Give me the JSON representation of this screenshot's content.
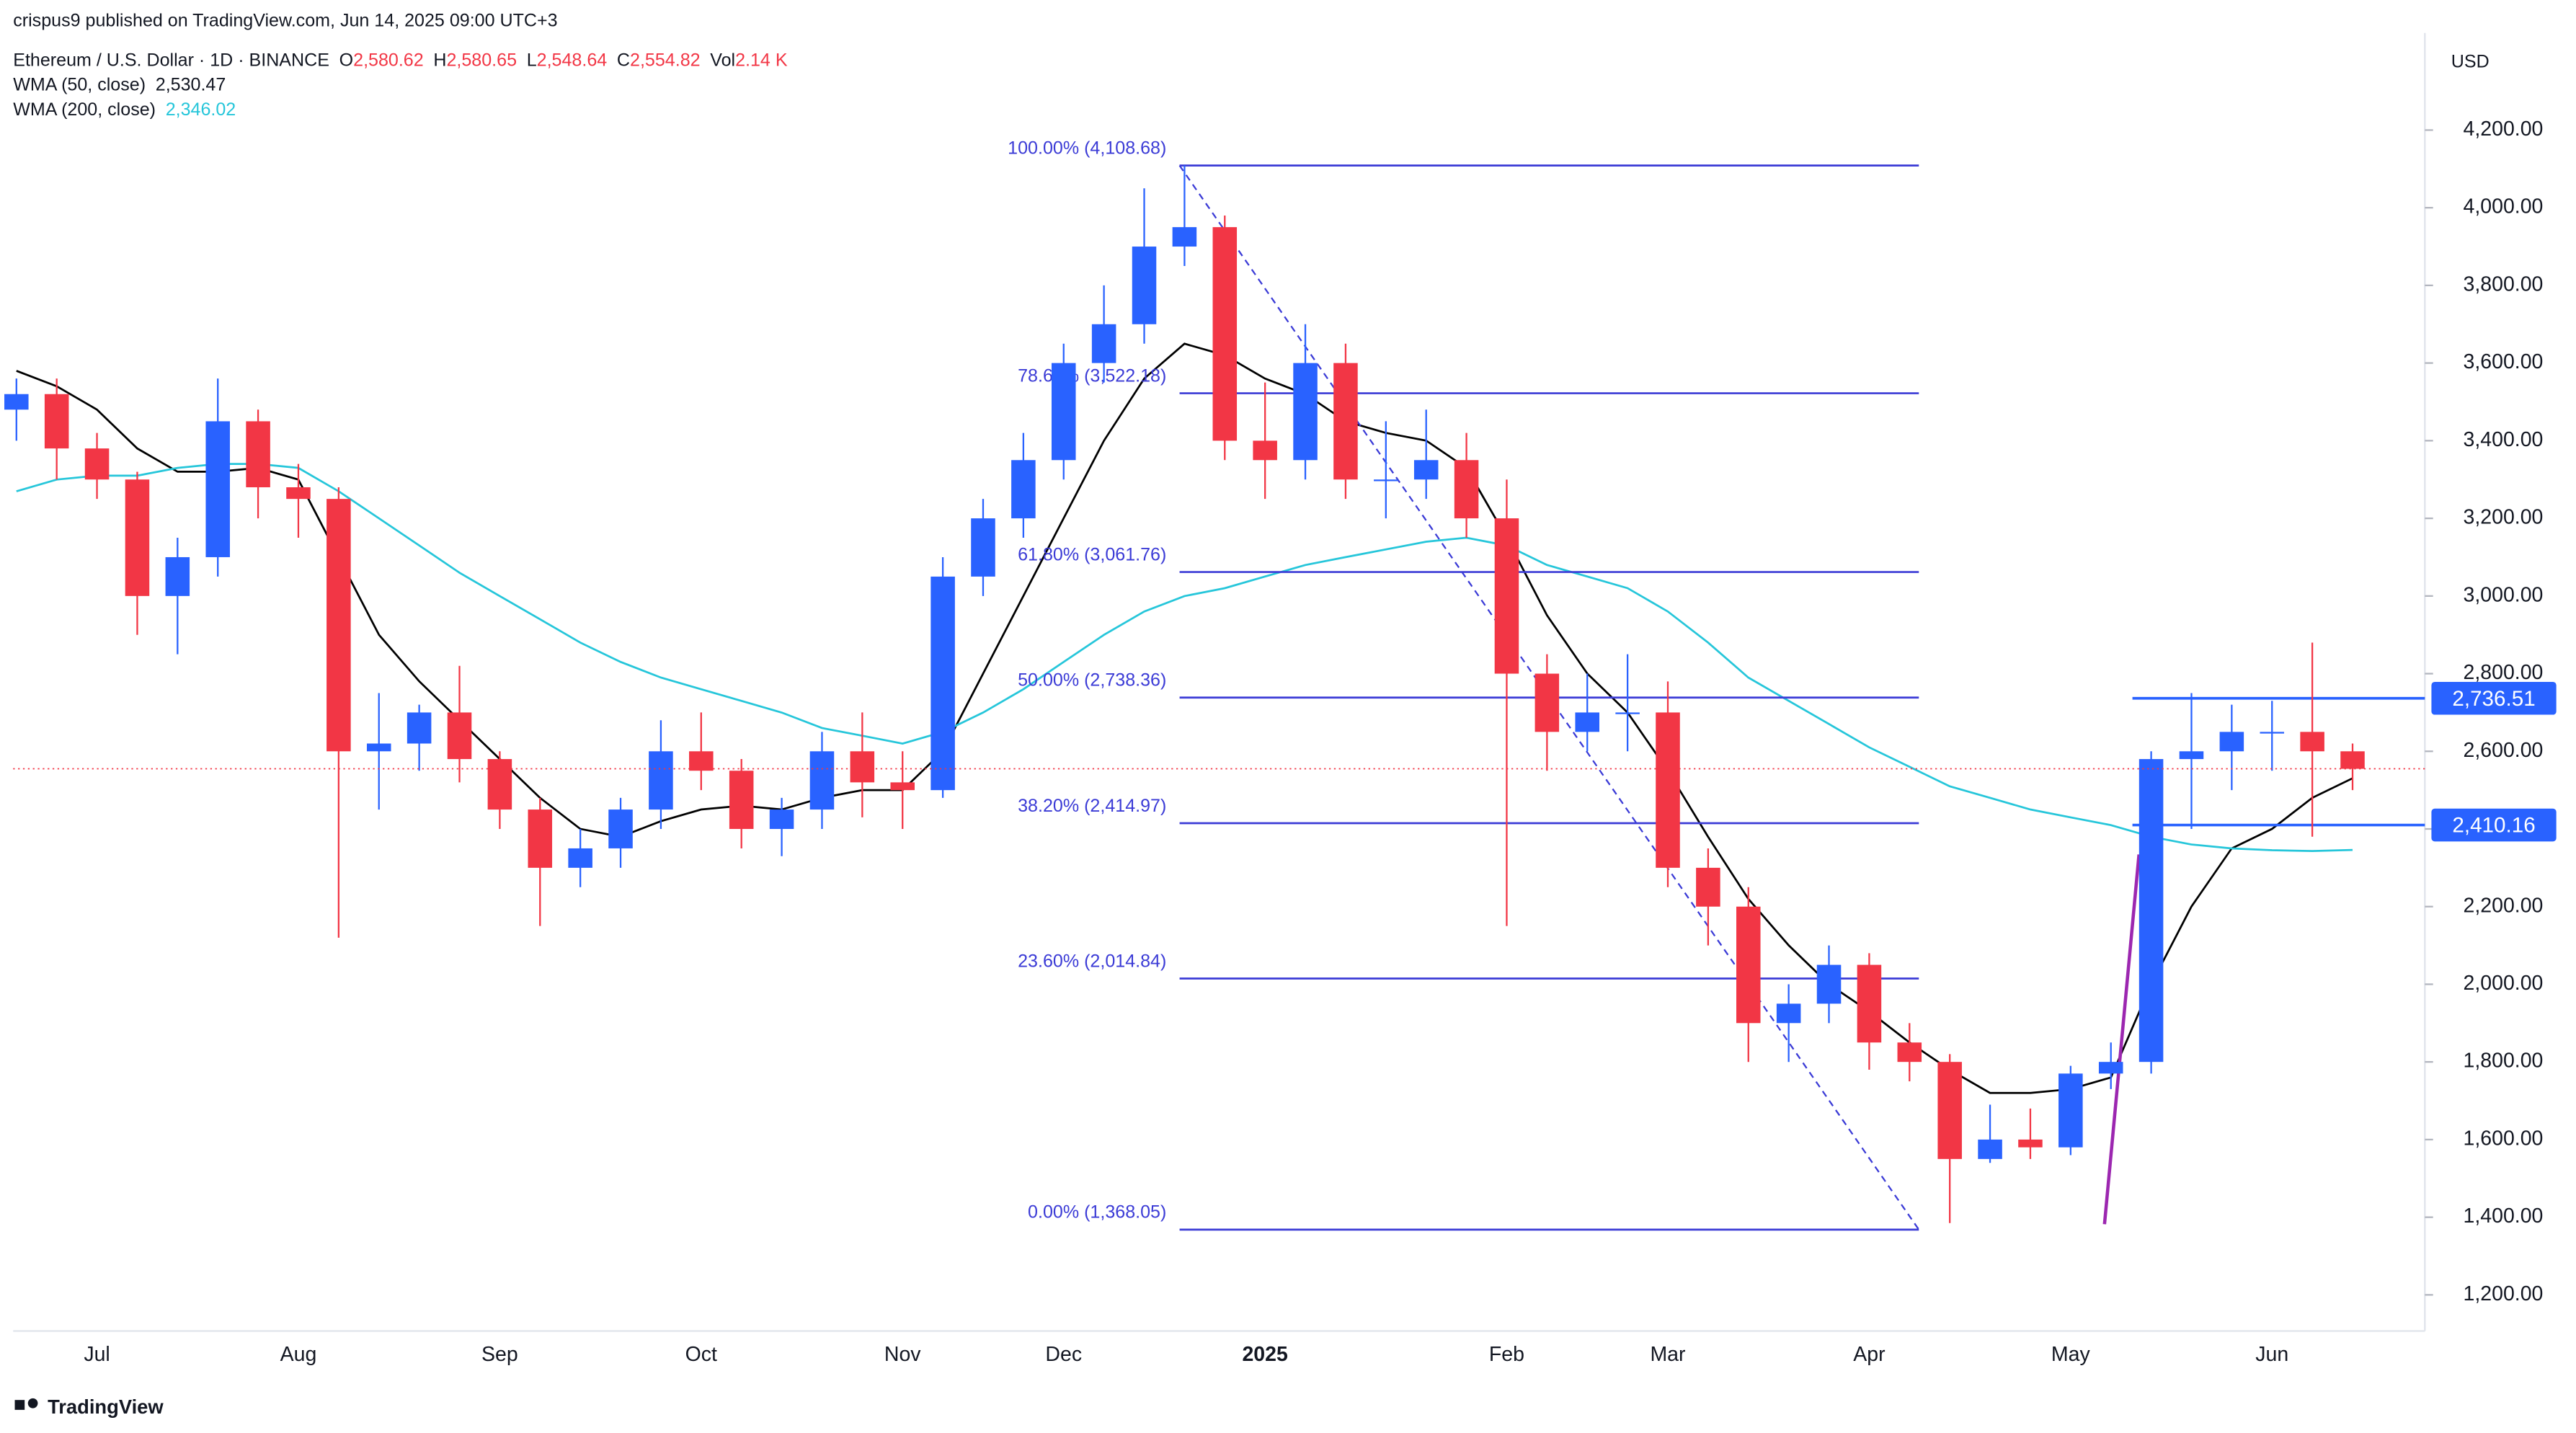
{
  "chart_data": {
    "type": "candlestick",
    "header": {
      "author": "crispus9 published on TradingView.com, Jun 14, 2025 09:00 UTC+3",
      "symbol": "Ethereum / U.S. Dollar · 1D · BINANCE",
      "ohlc": [
        {
          "key": "O",
          "value": "2,580.62"
        },
        {
          "key": "H",
          "value": "2,580.65"
        },
        {
          "key": "L",
          "value": "2,548.64"
        },
        {
          "key": "C",
          "value": "2,554.82"
        },
        {
          "key": "Vol",
          "value": "2.14 K"
        }
      ],
      "currency": "USD",
      "brand": "TradingView"
    },
    "categories": [
      null,
      null,
      "Jul",
      null,
      null,
      null,
      null,
      "Aug",
      null,
      null,
      null,
      null,
      "Sep",
      null,
      null,
      null,
      null,
      "Oct",
      null,
      null,
      null,
      null,
      "Nov",
      null,
      null,
      null,
      "Dec",
      null,
      null,
      null,
      null,
      "2025",
      null,
      null,
      null,
      null,
      null,
      "Feb",
      null,
      null,
      null,
      "Mar",
      null,
      null,
      null,
      null,
      "Apr",
      null,
      null,
      null,
      null,
      "May",
      null,
      null,
      null,
      null,
      "Jun",
      null,
      null
    ],
    "open": [
      3480,
      3520,
      3380,
      3300,
      3000,
      3100,
      3450,
      3280,
      3250,
      2600,
      2620,
      2700,
      2580,
      2450,
      2300,
      2350,
      2450,
      2600,
      2550,
      2400,
      2450,
      2600,
      2520,
      2500,
      3050,
      3200,
      3350,
      3600,
      3700,
      3900,
      3950,
      3400,
      3350,
      3600,
      3300,
      3300,
      3350,
      3200,
      2800,
      2650,
      2700,
      2700,
      2300,
      2200,
      1900,
      1950,
      2050,
      1850,
      1800,
      1550,
      1600,
      1580,
      1770,
      1800,
      2580,
      2600,
      2650,
      2650,
      2600
    ],
    "high": [
      3560,
      3560,
      3420,
      3320,
      3150,
      3560,
      3480,
      3340,
      3280,
      2750,
      2720,
      2820,
      2600,
      2480,
      2400,
      2480,
      2680,
      2700,
      2580,
      2480,
      2650,
      2700,
      2600,
      3100,
      3250,
      3420,
      3650,
      3800,
      4050,
      4108.68,
      3980,
      3550,
      3700,
      3650,
      3450,
      3480,
      3420,
      3300,
      2850,
      2800,
      2850,
      2780,
      2350,
      2250,
      2000,
      2100,
      2080,
      1900,
      1820,
      1690,
      1680,
      1790,
      1850,
      2600,
      2750,
      2720,
      2730,
      2880,
      2620
    ],
    "low": [
      3400,
      3300,
      3250,
      2900,
      2850,
      3050,
      3200,
      3150,
      2120,
      2450,
      2550,
      2520,
      2400,
      2150,
      2250,
      2300,
      2400,
      2500,
      2350,
      2330,
      2400,
      2430,
      2400,
      2480,
      3000,
      3150,
      3300,
      3550,
      3650,
      3850,
      3350,
      3250,
      3300,
      3250,
      3200,
      3250,
      3150,
      2150,
      2550,
      2600,
      2600,
      2250,
      2100,
      1800,
      1800,
      1900,
      1780,
      1750,
      1385,
      1540,
      1550,
      1560,
      1730,
      1770,
      2400,
      2500,
      2550,
      2380,
      2500
    ],
    "close": [
      3520,
      3380,
      3300,
      3000,
      3100,
      3450,
      3280,
      3250,
      2600,
      2620,
      2700,
      2580,
      2450,
      2300,
      2350,
      2450,
      2600,
      2550,
      2400,
      2450,
      2600,
      2520,
      2500,
      3050,
      3200,
      3350,
      3600,
      3700,
      3900,
      3950,
      3400,
      3350,
      3600,
      3300,
      3300,
      3350,
      3200,
      2800,
      2650,
      2700,
      2700,
      2300,
      2200,
      1900,
      1950,
      2050,
      1850,
      1800,
      1550,
      1600,
      1580,
      1770,
      1800,
      2580,
      2600,
      2650,
      2650,
      2600,
      2555
    ],
    "up_color": "#2962ff",
    "down_color": "#f23645",
    "series": [
      {
        "name": "WMA (50, close)",
        "color": "#000000",
        "values": [
          3580,
          3540,
          3480,
          3380,
          3320,
          3320,
          3330,
          3300,
          3100,
          2900,
          2780,
          2680,
          2580,
          2480,
          2400,
          2380,
          2420,
          2450,
          2460,
          2450,
          2480,
          2500,
          2500,
          2600,
          2800,
          3000,
          3200,
          3400,
          3560,
          3650,
          3620,
          3560,
          3520,
          3450,
          3420,
          3400,
          3330,
          3150,
          2950,
          2800,
          2700,
          2550,
          2380,
          2220,
          2100,
          2000,
          1930,
          1850,
          1780,
          1720,
          1720,
          1730,
          1760,
          2000,
          2200,
          2350,
          2400,
          2480,
          2530.47
        ]
      },
      {
        "name": "WMA (200, close)",
        "color": "#26c6da",
        "values": [
          3270,
          3300,
          3310,
          3310,
          3330,
          3340,
          3340,
          3330,
          3270,
          3200,
          3130,
          3060,
          3000,
          2940,
          2880,
          2830,
          2790,
          2760,
          2730,
          2700,
          2660,
          2640,
          2620,
          2650,
          2700,
          2760,
          2830,
          2900,
          2960,
          3000,
          3020,
          3050,
          3080,
          3100,
          3120,
          3140,
          3150,
          3130,
          3080,
          3050,
          3020,
          2960,
          2880,
          2790,
          2730,
          2670,
          2610,
          2560,
          2510,
          2480,
          2450,
          2430,
          2410,
          2380,
          2360,
          2350,
          2345,
          2343,
          2346.02
        ]
      }
    ],
    "legend_values": [
      "2,530.47",
      "2,346.02"
    ],
    "fib_color": "#3b3bd6",
    "fib_levels": [
      {
        "value": 4108.68,
        "label": "100.00% (4,108.68)"
      },
      {
        "value": 3522.18,
        "label": "78.60% (3,522.18)"
      },
      {
        "value": 3061.76,
        "label": "61.80% (3,061.76)"
      },
      {
        "value": 2738.36,
        "label": "50.00% (2,738.36)"
      },
      {
        "value": 2414.97,
        "label": "38.20% (2,414.97)"
      },
      {
        "value": 2014.84,
        "label": "23.60% (2,014.84)"
      },
      {
        "value": 1368.05,
        "label": "0.00% (1,368.05)"
      }
    ],
    "levels": [
      {
        "value": 2736.51,
        "label": "2,736.51"
      },
      {
        "value": 2410.16,
        "label": "2,410.16"
      }
    ],
    "level_color": "#2962ff",
    "ylim": [
      1107,
      4450
    ],
    "yticks": [
      {
        "value": 1200,
        "label": "1,200.00"
      },
      {
        "value": 1400,
        "label": "1,400.00"
      },
      {
        "value": 1600,
        "label": "1,600.00"
      },
      {
        "value": 1800,
        "label": "1,800.00"
      },
      {
        "value": 2000,
        "label": "2,000.00"
      },
      {
        "value": 2200,
        "label": "2,200.00"
      },
      {
        "value": 2400,
        "label": "2,400.00"
      },
      {
        "value": 2600,
        "label": "2,600.00"
      },
      {
        "value": 2800,
        "label": "2,800.00"
      },
      {
        "value": 3000,
        "label": "3,000.00"
      },
      {
        "value": 3200,
        "label": "3,200.00"
      },
      {
        "value": 3400,
        "label": "3,400.00"
      },
      {
        "value": 3600,
        "label": "3,600.00"
      },
      {
        "value": 3800,
        "label": "3,800.00"
      },
      {
        "value": 4000,
        "label": "4,000.00"
      },
      {
        "value": 4200,
        "label": "4,200.00"
      }
    ]
  }
}
